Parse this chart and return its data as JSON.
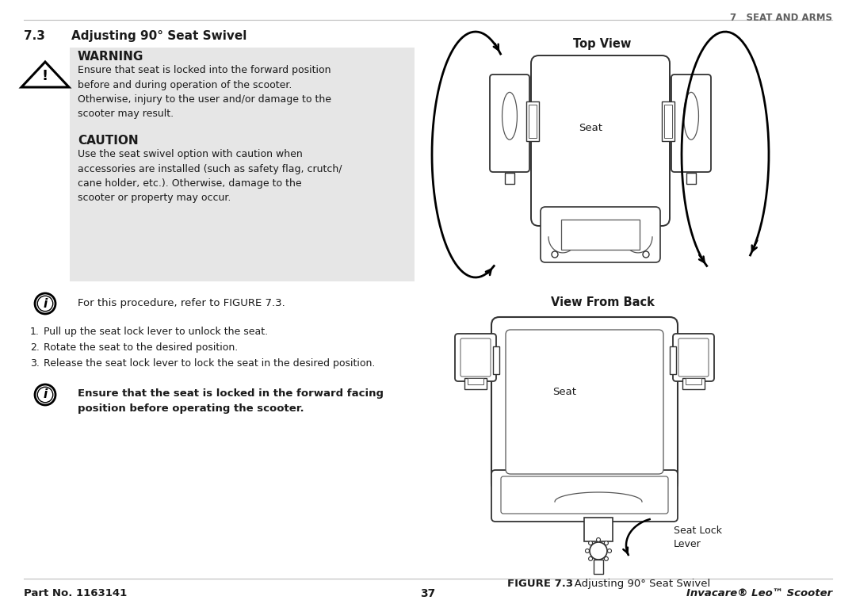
{
  "bg_color": "#ffffff",
  "header_chapter": "7   SEAT AND ARMS",
  "header_color": "#606060",
  "section_title_num": "7.3",
  "section_title_text": "Adjusting 90° Seat Swivel",
  "warning_title": "WARNING",
  "warning_text": "Ensure that seat is locked into the forward position\nbefore and during operation of the scooter.\nOtherwise, injury to the user and/or damage to the\nscooter may result.",
  "caution_title": "CAUTION",
  "caution_text": "Use the seat swivel option with caution when\naccessories are installed (such as safety flag, crutch/\ncane holder, etc.). Otherwise, damage to the\nscooter or property may occur.",
  "info_text_1": "For this procedure, refer to FIGURE 7.3.",
  "steps": [
    "Pull up the seat lock lever to unlock the seat.",
    "Rotate the seat to the desired position.",
    "Release the seat lock lever to lock the seat in the desired position."
  ],
  "info_text_2_bold": "Ensure that the seat is locked in the forward facing\nposition before operating the scooter.",
  "top_view_label": "Top View",
  "seat_label_top": "Seat",
  "back_view_label": "View From Back",
  "seat_label_back": "Seat",
  "seat_lock_label": "Seat Lock\nLever",
  "figure_caption_bold": "FIGURE 7.3",
  "figure_caption_normal": "   Adjusting 90° Seat Swivel",
  "footer_left": "Part No. 1163141",
  "footer_center": "37",
  "footer_right": "Invacare® Leo™ Scooter",
  "box_bg": "#e6e6e6",
  "text_color": "#1a1a1a",
  "gray_color": "#606060",
  "line_color": "#333333",
  "line_color2": "#555555"
}
